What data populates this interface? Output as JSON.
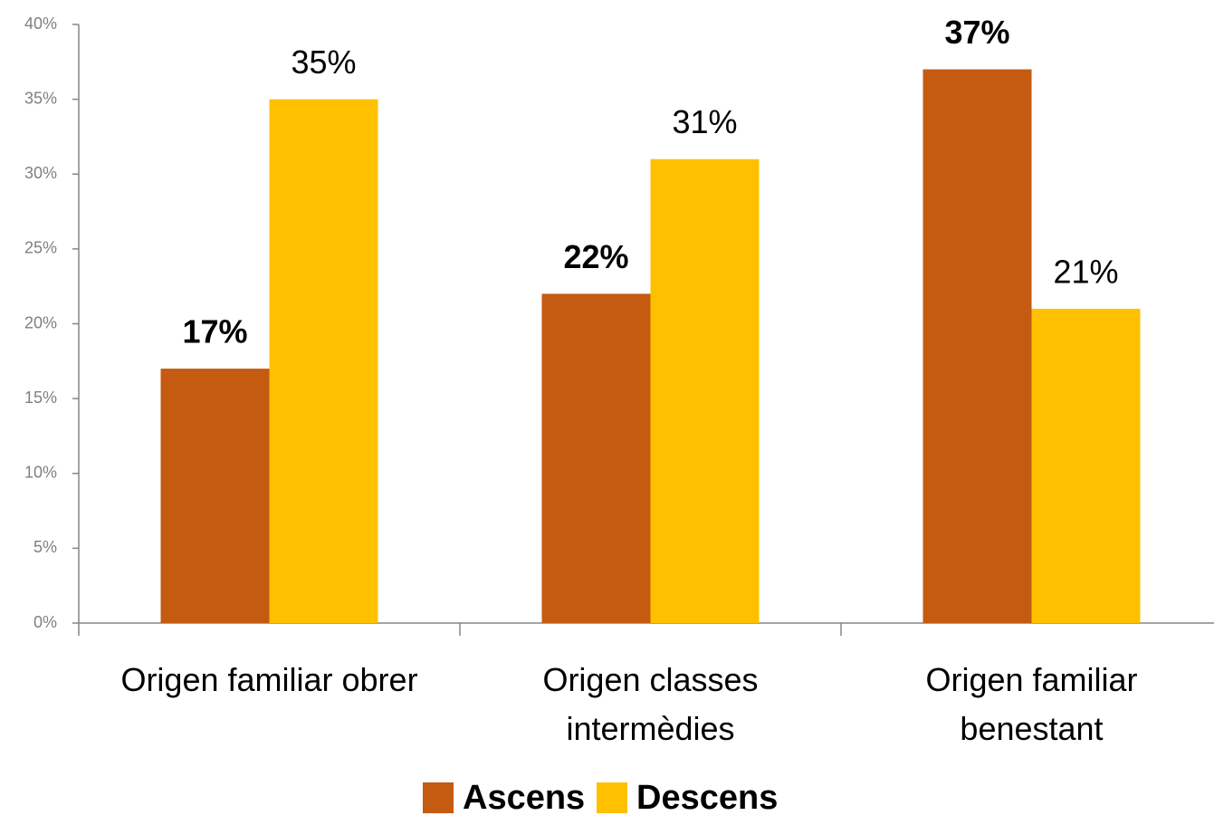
{
  "chart_data": {
    "type": "bar",
    "categories": [
      "Origen familiar obrer",
      "Origen classes intermèdies",
      "Origen familiar benestant"
    ],
    "series": [
      {
        "name": "Ascens",
        "color": "#c55a11",
        "values": [
          17,
          22,
          37
        ],
        "value_labels": [
          "17%",
          "22%",
          "37%"
        ]
      },
      {
        "name": "Descens",
        "color": "#ffc000",
        "values": [
          35,
          31,
          21
        ],
        "value_labels": [
          "35%",
          "31%",
          "21%"
        ]
      }
    ],
    "ylim": [
      0,
      40
    ],
    "yticks": [
      {
        "value": 0,
        "label": "0%"
      },
      {
        "value": 5,
        "label": "5%"
      },
      {
        "value": 10,
        "label": "10%"
      },
      {
        "value": 15,
        "label": "15%"
      },
      {
        "value": 20,
        "label": "20%"
      },
      {
        "value": 25,
        "label": "25%"
      },
      {
        "value": 30,
        "label": "30%"
      },
      {
        "value": 35,
        "label": "35%"
      },
      {
        "value": 40,
        "label": "40%"
      }
    ],
    "grid": false,
    "legend": "bottom"
  }
}
